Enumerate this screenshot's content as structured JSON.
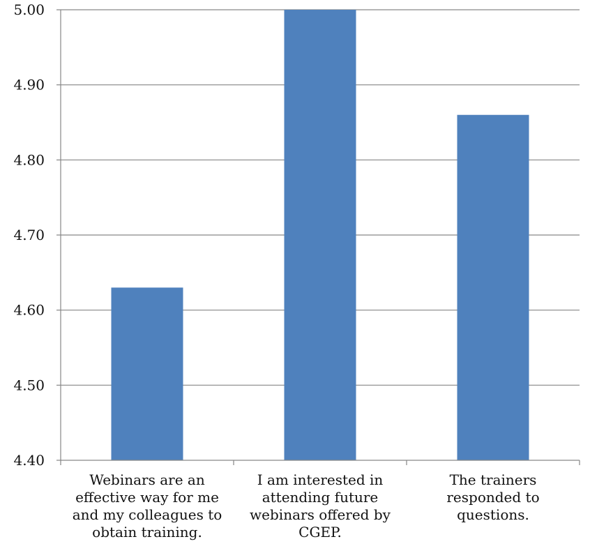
{
  "chart_data": {
    "type": "bar",
    "categories": [
      "Webinars are an effective way for me and my colleagues to obtain training.",
      "I am interested in attending future webinars offered by CGEP.",
      "The trainers responded to questions."
    ],
    "category_lines": [
      [
        "Webinars are an",
        "effective way for me",
        "and my colleagues to",
        "obtain training."
      ],
      [
        "I am interested in",
        "attending future",
        "webinars offered by",
        "CGEP."
      ],
      [
        "The trainers",
        "responded to",
        "questions."
      ]
    ],
    "values": [
      4.63,
      5.0,
      4.86
    ],
    "ylim": [
      4.4,
      5.0
    ],
    "yticks": [
      "4.40",
      "4.50",
      "4.60",
      "4.70",
      "4.80",
      "4.90",
      "5.00"
    ],
    "title": "",
    "xlabel": "",
    "ylabel": "",
    "grid": true,
    "legend": "none",
    "bar_color": "#4f81bd",
    "grid_color": "#868686"
  }
}
